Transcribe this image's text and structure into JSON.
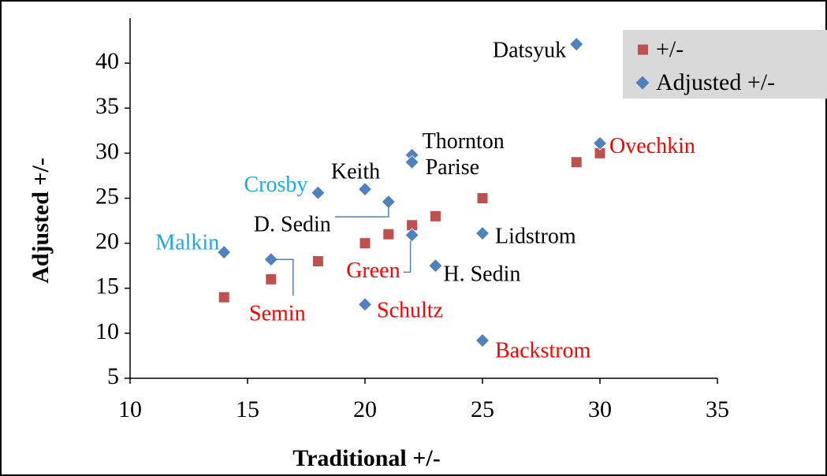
{
  "chart_data": {
    "type": "scatter",
    "x_label": "Traditional +/-",
    "y_label": "Adjusted +/-",
    "xlim": [
      10,
      35
    ],
    "ylim": [
      5,
      45
    ],
    "xticks": [
      10,
      15,
      20,
      25,
      30,
      35
    ],
    "yticks": [
      5,
      10,
      15,
      20,
      25,
      30,
      35,
      40
    ],
    "grid": false,
    "legend": "top-right",
    "series": [
      {
        "name": "+/-",
        "color": "#c0504d",
        "marker": "square",
        "x": [
          14,
          16,
          18,
          20,
          21,
          22,
          23,
          25,
          29,
          30
        ],
        "values": [
          14,
          16,
          18,
          20,
          21,
          22,
          23,
          25,
          29,
          30
        ]
      },
      {
        "name": "Adjusted +/-",
        "color": "#4f81bd",
        "marker": "diamond",
        "x": [
          14,
          16,
          18,
          20,
          20,
          21,
          22,
          22,
          22,
          23,
          25,
          25,
          29,
          30
        ],
        "values": [
          19,
          18.2,
          25.6,
          26,
          13.2,
          24.6,
          29.8,
          29,
          20.9,
          17.5,
          21.1,
          9.2,
          42.1,
          31.1
        ],
        "labels": [
          "Malkin",
          "Semin",
          "Crosby",
          "Keith",
          "Schultz",
          "D. Sedin",
          "Thornton",
          "Parise",
          "Green",
          "H. Sedin",
          "Lidstrom",
          "Backstrom",
          "Datsyuk",
          "Ovechkin"
        ],
        "label_colors": [
          "#1ea7e4",
          "#ff0000",
          "#1ea7e4",
          "#000000",
          "#ff0000",
          "#000000",
          "#000000",
          "#000000",
          "#ff0000",
          "#000000",
          "#000000",
          "#ff0000",
          "#000000",
          "#ff0000"
        ]
      }
    ]
  }
}
